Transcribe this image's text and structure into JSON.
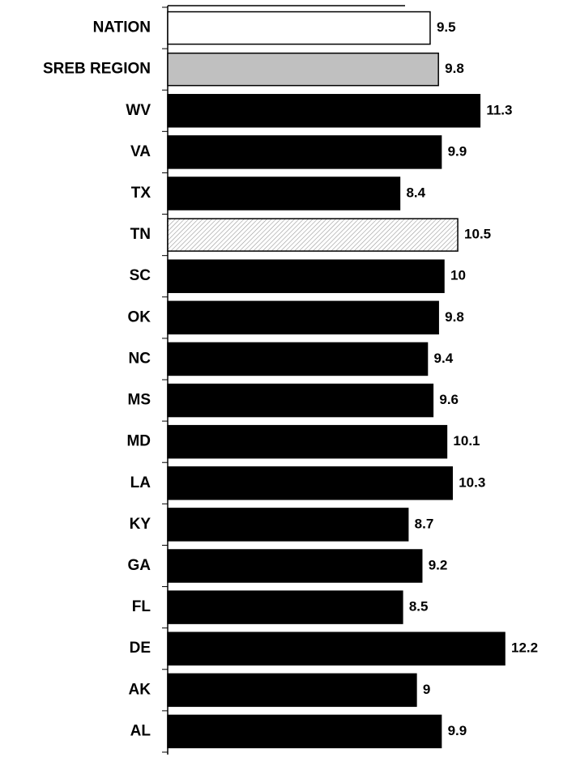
{
  "chart_data": {
    "type": "hbar",
    "categories": [
      "NATION",
      "SREB REGION",
      "WV",
      "VA",
      "TX",
      "TN",
      "SC",
      "OK",
      "NC",
      "MS",
      "MD",
      "LA",
      "KY",
      "GA",
      "FL",
      "DE",
      "AK",
      "AL"
    ],
    "values": [
      9.5,
      9.8,
      11.3,
      9.9,
      8.4,
      10.5,
      10,
      9.8,
      9.4,
      9.6,
      10.1,
      10.3,
      8.7,
      9.2,
      8.5,
      12.2,
      9,
      9.9
    ],
    "colors": [
      "#ffffff",
      "#c0c0c0",
      "#000000",
      "#000000",
      "#000000",
      "hatch",
      "#000000",
      "#000000",
      "#000000",
      "#000000",
      "#000000",
      "#000000",
      "#000000",
      "#000000",
      "#000000",
      "#000000",
      "#000000",
      "#000000"
    ],
    "xlim": [
      0,
      14
    ]
  }
}
